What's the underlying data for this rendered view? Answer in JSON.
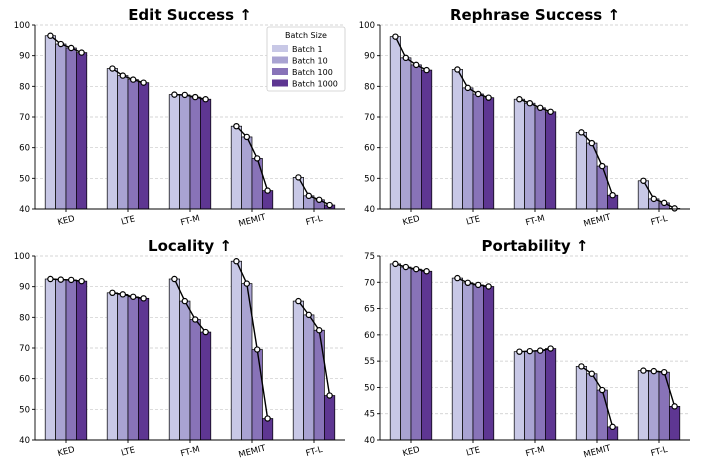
{
  "colors": [
    "#c8c8e6",
    "#a9a3d2",
    "#8873b8",
    "#5e3692"
  ],
  "legend": {
    "title": "Batch Size",
    "entries": [
      "Batch 1",
      "Batch 10",
      "Batch 100",
      "Batch 1000"
    ],
    "placement": "top-right of first panel"
  },
  "chart_data": [
    {
      "type": "bar",
      "title": "Edit Success ↑",
      "categories": [
        "KED",
        "LTE",
        "FT-M",
        "MEMIT",
        "FT-L"
      ],
      "ylim": [
        40,
        100
      ],
      "yticks": [
        40,
        50,
        60,
        70,
        80,
        90,
        100
      ],
      "series": [
        {
          "name": "Batch 1",
          "values": [
            96.5,
            85.8,
            77.3,
            67.0,
            50.3
          ]
        },
        {
          "name": "Batch 10",
          "values": [
            93.8,
            83.5,
            77.2,
            63.5,
            44.3
          ]
        },
        {
          "name": "Batch 100",
          "values": [
            92.5,
            82.2,
            76.5,
            56.5,
            43.0
          ]
        },
        {
          "name": "Batch 1000",
          "values": [
            91.0,
            81.2,
            75.8,
            46.0,
            41.3
          ]
        }
      ]
    },
    {
      "type": "bar",
      "title": "Rephrase Success ↑",
      "categories": [
        "KED",
        "LTE",
        "FT-M",
        "MEMIT",
        "FT-L"
      ],
      "ylim": [
        40,
        100
      ],
      "yticks": [
        40,
        50,
        60,
        70,
        80,
        90,
        100
      ],
      "series": [
        {
          "name": "Batch 1",
          "values": [
            96.2,
            85.5,
            75.8,
            65.0,
            49.2
          ]
        },
        {
          "name": "Batch 10",
          "values": [
            89.3,
            79.5,
            74.5,
            61.5,
            43.3
          ]
        },
        {
          "name": "Batch 100",
          "values": [
            87.0,
            77.5,
            73.0,
            54.0,
            42.0
          ]
        },
        {
          "name": "Batch 1000",
          "values": [
            85.3,
            76.3,
            71.7,
            44.5,
            40.2
          ]
        }
      ]
    },
    {
      "type": "bar",
      "title": "Locality ↑",
      "categories": [
        "KED",
        "LTE",
        "FT-M",
        "MEMIT",
        "FT-L"
      ],
      "ylim": [
        40,
        100
      ],
      "yticks": [
        40,
        50,
        60,
        70,
        80,
        90,
        100
      ],
      "series": [
        {
          "name": "Batch 1",
          "values": [
            92.5,
            88.0,
            92.5,
            98.3,
            85.3
          ]
        },
        {
          "name": "Batch 10",
          "values": [
            92.3,
            87.5,
            85.3,
            91.0,
            80.8
          ]
        },
        {
          "name": "Batch 100",
          "values": [
            92.2,
            86.7,
            79.3,
            69.5,
            75.8
          ]
        },
        {
          "name": "Batch 1000",
          "values": [
            91.8,
            86.2,
            75.2,
            47.0,
            54.5
          ]
        }
      ]
    },
    {
      "type": "bar",
      "title": "Portability ↑",
      "categories": [
        "KED",
        "LTE",
        "FT-M",
        "MEMIT",
        "FT-L"
      ],
      "ylim": [
        40,
        75
      ],
      "yticks": [
        40,
        45,
        50,
        55,
        60,
        65,
        70,
        75
      ],
      "series": [
        {
          "name": "Batch 1",
          "values": [
            73.5,
            70.8,
            56.8,
            54.0,
            53.2
          ]
        },
        {
          "name": "Batch 10",
          "values": [
            72.9,
            69.9,
            56.9,
            52.6,
            53.1
          ]
        },
        {
          "name": "Batch 100",
          "values": [
            72.5,
            69.5,
            57.0,
            49.5,
            52.9
          ]
        },
        {
          "name": "Batch 1000",
          "values": [
            72.1,
            69.2,
            57.4,
            42.5,
            46.4
          ]
        }
      ]
    }
  ]
}
